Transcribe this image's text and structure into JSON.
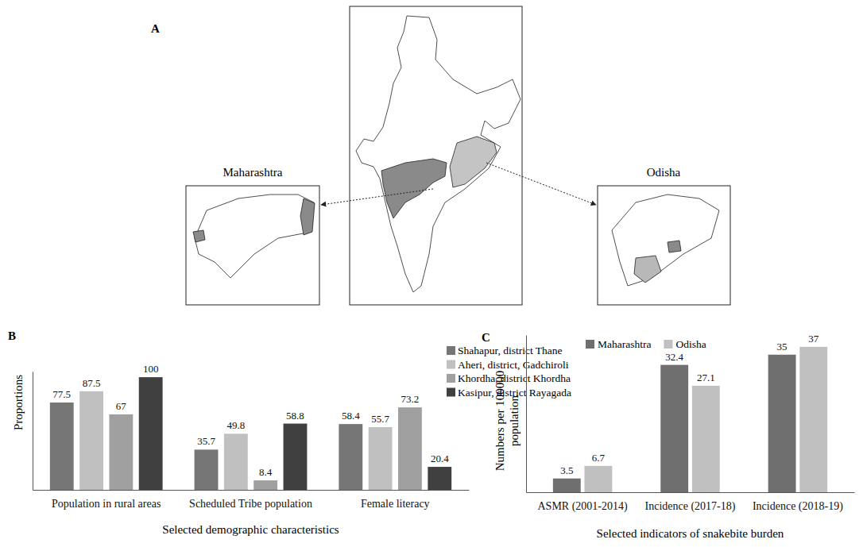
{
  "panel_labels": [
    "A",
    "B",
    "C"
  ],
  "map": {
    "labels": [
      "Maharashtra",
      "Odisha"
    ]
  },
  "chart_data": [
    {
      "type": "bar",
      "categories": [
        "Population in rural areas",
        "Scheduled Tribe population",
        "Female literacy"
      ],
      "series": [
        {
          "name": "Shahapur, district Thane",
          "color": "#767676",
          "values": [
            77.5,
            35.7,
            58.4
          ]
        },
        {
          "name": "Aheri, district, Gadchiroli",
          "color": "#c0c0c0",
          "values": [
            87.5,
            49.8,
            55.7
          ]
        },
        {
          "name": "Khordha, district Khordha",
          "color": "#a0a0a0",
          "values": [
            67,
            8.4,
            73.2
          ]
        },
        {
          "name": "Kasipur, district Rayagada",
          "color": "#404040",
          "values": [
            100,
            58.8,
            20.4
          ]
        }
      ],
      "x_label": "Selected demographic characteristics",
      "y_label": "Proportions",
      "ylim": [
        0,
        105
      ],
      "yticks": [],
      "tick_labels": "x",
      "data_labels": true,
      "legend": "top-right"
    },
    {
      "type": "bar",
      "categories": [
        "ASMR (2001-2014)",
        "Incidence (2017-18)",
        "Incidence (2018-19)"
      ],
      "series": [
        {
          "name": "Maharashtra",
          "color": "#6f6f6f",
          "values": [
            3.5,
            32.4,
            35
          ]
        },
        {
          "name": "Odisha",
          "color": "#c0c0c0",
          "values": [
            6.7,
            27.1,
            37
          ]
        }
      ],
      "x_label": "Selected indicators of snakebite burden",
      "y_label": "Numbers per 100000 population",
      "ylim": [
        0,
        40
      ],
      "yticks": [],
      "tick_labels": "x",
      "data_labels": true,
      "legend": "top"
    }
  ]
}
